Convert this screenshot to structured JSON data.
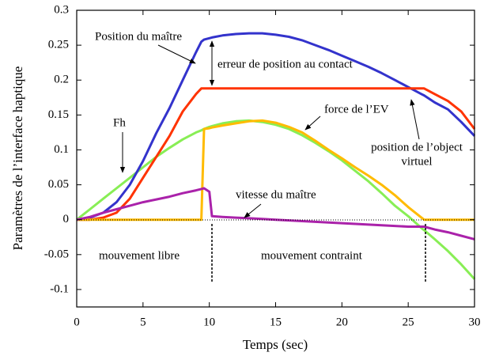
{
  "chart_data": {
    "type": "line",
    "xlabel": "Temps (sec)",
    "ylabel": "Paramètres de l’interface haptique",
    "xlim": [
      0,
      30
    ],
    "xticks": [
      0,
      5,
      10,
      15,
      20,
      25,
      30
    ],
    "ylim": [
      -0.125,
      0.3
    ],
    "yticks": [
      0.3,
      0.25,
      0.2,
      0.15,
      0.1,
      0.05,
      0,
      -0.05,
      -0.1
    ],
    "annotations": [
      "Position du maître",
      "erreur de position au contact",
      "force de l’EV",
      "Fh",
      "position de l’object",
      "virtuel",
      "vitesse du maître",
      "mouvement libre",
      "mouvement contraint"
    ],
    "x": [
      0,
      1,
      2,
      3,
      4,
      5,
      6,
      7,
      8,
      9,
      9.4,
      9.6,
      10,
      10.2,
      11,
      12,
      13,
      14,
      15,
      16,
      17,
      18,
      19,
      20,
      21,
      22,
      23,
      24,
      25,
      26,
      26.2,
      27,
      28,
      29,
      30
    ],
    "series": [
      {
        "color": "#88ee55",
        "values": [
          0,
          0.015,
          0.03,
          0.045,
          0.06,
          0.075,
          0.09,
          0.103,
          0.115,
          0.125,
          0.128,
          0.13,
          0.133,
          0.134,
          0.138,
          0.141,
          0.142,
          0.14,
          0.136,
          0.13,
          0.121,
          0.11,
          0.098,
          0.085,
          0.07,
          0.055,
          0.038,
          0.02,
          0.005,
          -0.012,
          -0.015,
          -0.028,
          -0.045,
          -0.064,
          -0.085
        ]
      },
      {
        "color": "#3333cc",
        "values": [
          0,
          0.003,
          0.01,
          0.025,
          0.05,
          0.084,
          0.124,
          0.16,
          0.2,
          0.24,
          0.255,
          0.258,
          0.26,
          0.261,
          0.264,
          0.266,
          0.267,
          0.267,
          0.265,
          0.262,
          0.257,
          0.25,
          0.243,
          0.235,
          0.227,
          0.219,
          0.21,
          0.2,
          0.19,
          0.18,
          0.178,
          0.168,
          0.158,
          0.14,
          0.12
        ]
      },
      {
        "color": "#ff3300",
        "values": [
          0,
          0,
          0.003,
          0.01,
          0.03,
          0.06,
          0.09,
          0.12,
          0.155,
          0.18,
          0.188,
          0.188,
          0.188,
          0.188,
          0.188,
          0.188,
          0.188,
          0.188,
          0.188,
          0.188,
          0.188,
          0.188,
          0.188,
          0.188,
          0.188,
          0.188,
          0.188,
          0.188,
          0.188,
          0.188,
          0.188,
          0.18,
          0.17,
          0.155,
          0.13
        ]
      },
      {
        "color": "#ffbb00",
        "values": [
          0,
          0,
          0,
          0,
          0,
          0,
          0,
          0,
          0,
          0,
          0,
          0.13,
          0.131,
          0.132,
          0.135,
          0.138,
          0.141,
          0.142,
          0.139,
          0.133,
          0.125,
          0.113,
          0.1,
          0.088,
          0.075,
          0.063,
          0.05,
          0.035,
          0.018,
          0.003,
          0,
          0,
          0,
          0,
          0
        ]
      },
      {
        "color": "#aa22aa",
        "values": [
          0,
          0.004,
          0.01,
          0.015,
          0.02,
          0.025,
          0.029,
          0.033,
          0.038,
          0.042,
          0.044,
          0.045,
          0.04,
          0.005,
          0.004,
          0.003,
          0.002,
          0.001,
          0,
          -0.001,
          -0.002,
          -0.003,
          -0.004,
          -0.005,
          -0.006,
          -0.007,
          -0.008,
          -0.009,
          -0.01,
          -0.01,
          -0.01,
          -0.014,
          -0.018,
          -0.023,
          -0.028
        ]
      }
    ]
  }
}
